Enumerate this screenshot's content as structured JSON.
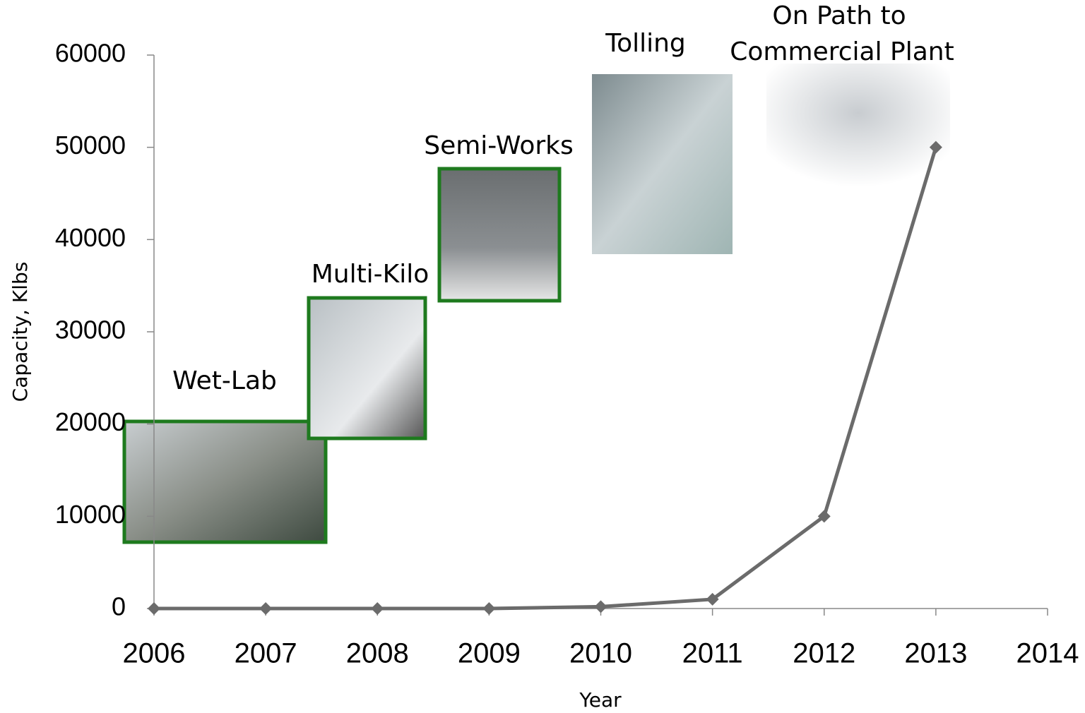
{
  "chart_data": {
    "type": "line",
    "x_label": "Year",
    "y_label": "Capacity, Klbs",
    "x": [
      2006,
      2007,
      2008,
      2009,
      2010,
      2011,
      2012,
      2013
    ],
    "series": [
      {
        "color": "#6b6b6b",
        "values": [
          0,
          0,
          0,
          0,
          200,
          1000,
          10000,
          50000
        ]
      }
    ],
    "xlim": [
      2006,
      2014
    ],
    "xticks": [
      2006,
      2007,
      2008,
      2009,
      2010,
      2011,
      2012,
      2013,
      2014
    ],
    "ylim": [
      0,
      60000
    ],
    "yticks": [
      0,
      10000,
      20000,
      30000,
      40000,
      50000,
      60000
    ],
    "grid": false,
    "annotations": [
      "Wet-Lab",
      "Multi-Kilo",
      "Semi-Works",
      "Tolling",
      "On Path to",
      "Commercial Plant"
    ]
  }
}
